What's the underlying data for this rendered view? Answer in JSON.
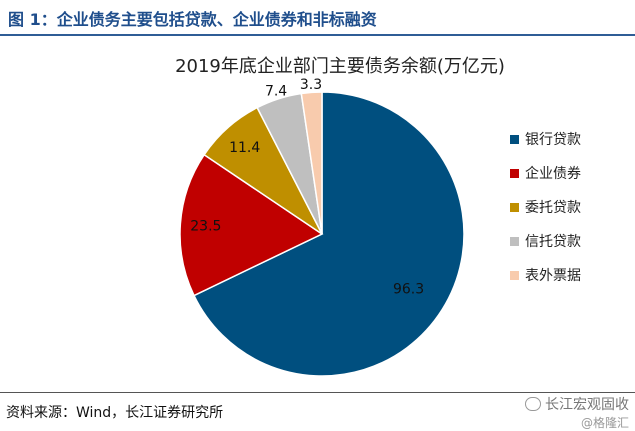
{
  "figure_title": "图 1：企业债务主要包括贷款、企业债券和非标融资",
  "source_note": "资料来源：Wind，长江证券研究所",
  "watermark": {
    "line1": "长江宏观固收",
    "line2": "@格隆汇"
  },
  "colors": {
    "title": "#1f4e8c",
    "rule": "#2f5d96"
  },
  "chart_data": {
    "type": "pie",
    "title": "2019年底企业部门主要债务余额(万亿元)",
    "legend_position": "right",
    "series": [
      {
        "name": "银行贷款",
        "value": 96.3,
        "color": "#004f7f"
      },
      {
        "name": "企业债券",
        "value": 23.5,
        "color": "#c00000"
      },
      {
        "name": "委托贷款",
        "value": 11.4,
        "color": "#bf8f00"
      },
      {
        "name": "信托贷款",
        "value": 7.4,
        "color": "#bfbfbf"
      },
      {
        "name": "表外票据",
        "value": 3.3,
        "color": "#f8cbad"
      }
    ]
  }
}
